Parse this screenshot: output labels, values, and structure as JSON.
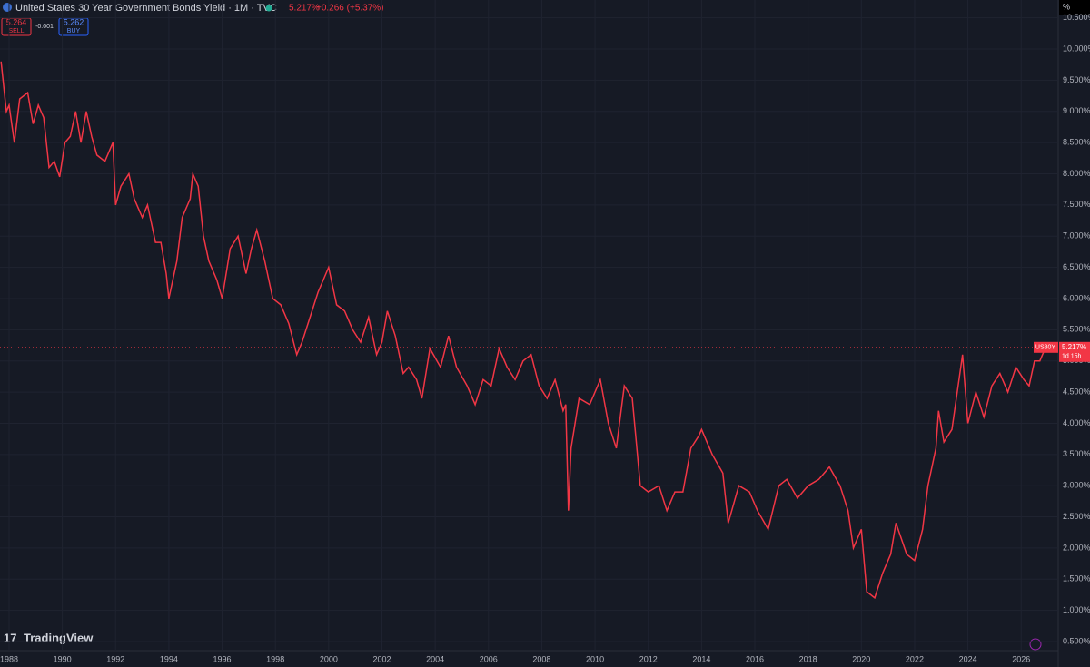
{
  "header": {
    "title": "United States 30 Year Government Bonds Yield · 1M · TVC",
    "price": "5.217%",
    "change": "+0.266 (+5.37%)",
    "sell_price": "5.264",
    "sell": "SELL",
    "spread": "-0.001",
    "buy_price": "5.262",
    "buy": "BUY",
    "logo": "TradingView",
    "unit": "%"
  },
  "chart_data": {
    "type": "line",
    "color": "#f23645",
    "x": [
      1987.7,
      1987.9,
      1988.0,
      1988.2,
      1988.4,
      1988.7,
      1988.9,
      1989.1,
      1989.3,
      1989.5,
      1989.7,
      1989.9,
      1990.1,
      1990.3,
      1990.5,
      1990.7,
      1990.9,
      1991.1,
      1991.3,
      1991.6,
      1991.9,
      1992.0,
      1992.2,
      1992.5,
      1992.7,
      1993.0,
      1993.2,
      1993.5,
      1993.7,
      1993.9,
      1994.0,
      1994.3,
      1994.5,
      1994.8,
      1994.9,
      1995.1,
      1995.3,
      1995.5,
      1995.8,
      1996.0,
      1996.3,
      1996.6,
      1996.9,
      1997.1,
      1997.3,
      1997.6,
      1997.9,
      1998.2,
      1998.5,
      1998.8,
      1999.0,
      1999.3,
      1999.6,
      2000.0,
      2000.3,
      2000.6,
      2000.9,
      2001.2,
      2001.5,
      2001.8,
      2002.0,
      2002.2,
      2002.5,
      2002.8,
      2003.0,
      2003.3,
      2003.5,
      2003.8,
      2004.2,
      2004.5,
      2004.8,
      2005.2,
      2005.5,
      2005.8,
      2006.1,
      2006.4,
      2006.7,
      2007.0,
      2007.3,
      2007.6,
      2007.9,
      2008.2,
      2008.5,
      2008.8,
      2008.9,
      2009.0,
      2009.1,
      2009.4,
      2009.8,
      2010.2,
      2010.5,
      2010.8,
      2011.1,
      2011.4,
      2011.7,
      2012.0,
      2012.4,
      2012.7,
      2013.0,
      2013.3,
      2013.6,
      2013.9,
      2014.0,
      2014.4,
      2014.8,
      2015.0,
      2015.4,
      2015.8,
      2016.1,
      2016.5,
      2016.9,
      2017.2,
      2017.6,
      2018.0,
      2018.4,
      2018.8,
      2019.2,
      2019.5,
      2019.7,
      2020.0,
      2020.2,
      2020.5,
      2020.8,
      2021.1,
      2021.3,
      2021.7,
      2022.0,
      2022.3,
      2022.5,
      2022.8,
      2022.9,
      2023.1,
      2023.4,
      2023.8,
      2024.0,
      2024.3,
      2024.6,
      2024.9,
      2025.2,
      2025.5,
      2025.8,
      2026.1,
      2026.3,
      2026.5,
      2026.7,
      2026.9,
      2027.0
    ],
    "values": [
      9.8,
      9.0,
      9.1,
      8.5,
      9.2,
      9.3,
      8.8,
      9.1,
      8.9,
      8.1,
      8.2,
      7.95,
      8.5,
      8.6,
      9.0,
      8.5,
      9.0,
      8.6,
      8.3,
      8.2,
      8.5,
      7.5,
      7.8,
      8.0,
      7.6,
      7.3,
      7.5,
      6.9,
      6.9,
      6.4,
      6.0,
      6.6,
      7.3,
      7.6,
      8.0,
      7.8,
      7.0,
      6.6,
      6.3,
      6.0,
      6.8,
      7.0,
      6.4,
      6.8,
      7.1,
      6.6,
      6.0,
      5.9,
      5.6,
      5.1,
      5.3,
      5.7,
      6.1,
      6.5,
      5.9,
      5.8,
      5.5,
      5.3,
      5.7,
      5.1,
      5.3,
      5.8,
      5.4,
      4.8,
      4.9,
      4.7,
      4.4,
      5.2,
      4.9,
      5.4,
      4.9,
      4.6,
      4.3,
      4.7,
      4.6,
      5.2,
      4.9,
      4.7,
      5.0,
      5.1,
      4.6,
      4.4,
      4.7,
      4.2,
      4.3,
      2.6,
      3.6,
      4.4,
      4.3,
      4.7,
      4.0,
      3.6,
      4.6,
      4.4,
      3.0,
      2.9,
      3.0,
      2.6,
      2.9,
      2.9,
      3.6,
      3.8,
      3.9,
      3.5,
      3.2,
      2.4,
      3.0,
      2.9,
      2.6,
      2.3,
      3.0,
      3.1,
      2.8,
      3.0,
      3.1,
      3.3,
      3.0,
      2.6,
      2.0,
      2.3,
      1.3,
      1.2,
      1.6,
      1.9,
      2.4,
      1.9,
      1.8,
      2.3,
      3.0,
      3.6,
      4.2,
      3.7,
      3.9,
      5.1,
      4.0,
      4.5,
      4.1,
      4.6,
      4.8,
      4.5,
      4.9,
      4.7,
      4.6,
      5.0,
      5.0,
      5.2,
      5.217
    ],
    "xlim": [
      1987.66,
      2027.39
    ],
    "ylim": [
      0.355,
      10.786
    ],
    "xticks": [
      1988,
      1990,
      1992,
      1994,
      1996,
      1998,
      2000,
      2002,
      2004,
      2006,
      2008,
      2010,
      2012,
      2014,
      2016,
      2018,
      2020,
      2022,
      2024,
      2026
    ],
    "yticks": [
      {
        "value": 0.5,
        "label": "0.500%"
      },
      {
        "value": 1.0,
        "label": "1.000%"
      },
      {
        "value": 1.5,
        "label": "1.500%"
      },
      {
        "value": 2.0,
        "label": "2.000%"
      },
      {
        "value": 2.5,
        "label": "2.500%"
      },
      {
        "value": 3.0,
        "label": "3.000%"
      },
      {
        "value": 3.5,
        "label": "3.500%"
      },
      {
        "value": 4.0,
        "label": "4.000%"
      },
      {
        "value": 4.5,
        "label": "4.500%"
      },
      {
        "value": 5.0,
        "label": "5.000%"
      },
      {
        "value": 5.5,
        "label": "5.500%"
      },
      {
        "value": 6.0,
        "label": "6.000%"
      },
      {
        "value": 6.5,
        "label": "6.500%"
      },
      {
        "value": 7.0,
        "label": "7.000%"
      },
      {
        "value": 7.5,
        "label": "7.500%"
      },
      {
        "value": 8.0,
        "label": "8.000%"
      },
      {
        "value": 8.5,
        "label": "8.500%"
      },
      {
        "value": 9.0,
        "label": "9.000%"
      },
      {
        "value": 9.5,
        "label": "9.500%"
      },
      {
        "value": 10.0,
        "label": "10.000%"
      },
      {
        "value": 10.5,
        "label": "10.500%"
      }
    ],
    "last": {
      "symbol": "US30Y",
      "value": 5.217,
      "label": "5.217%",
      "countdown": "1d 15h"
    }
  }
}
